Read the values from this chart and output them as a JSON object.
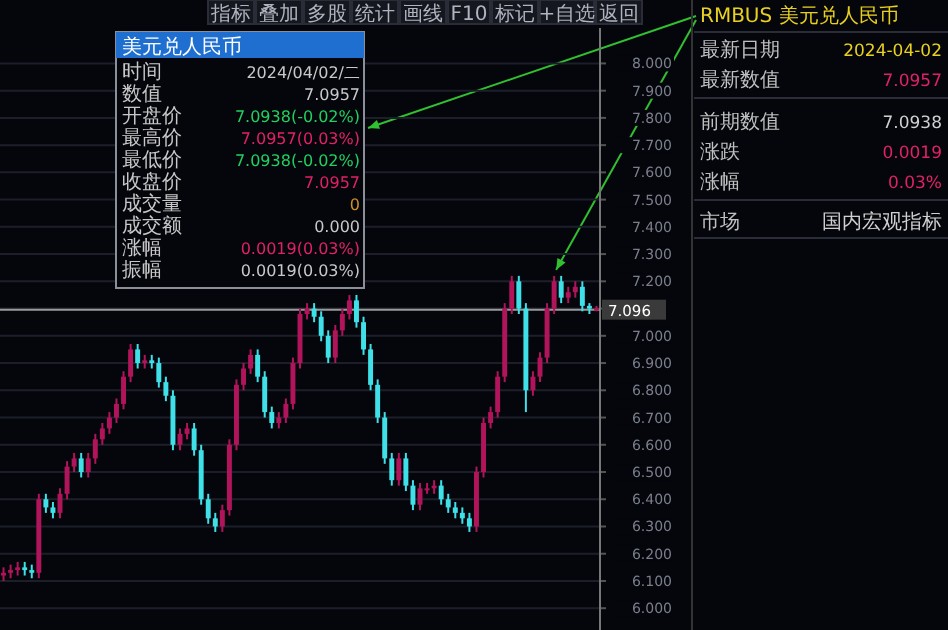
{
  "chart_data": {
    "type": "candlestick",
    "title": "RMBUS 美元兑人民币",
    "categories": [
      null,
      null,
      null,
      null,
      null,
      null,
      null,
      null,
      null,
      null,
      null,
      null,
      null,
      null,
      null,
      null,
      null,
      null,
      null,
      null,
      null,
      null,
      null,
      null,
      null,
      null,
      null,
      null,
      null,
      null,
      null,
      null,
      null,
      null,
      null,
      null,
      null,
      null,
      null,
      null,
      null,
      null,
      null,
      null,
      null,
      null,
      null,
      null,
      null,
      null,
      null,
      null,
      null,
      null,
      null,
      null,
      null,
      null,
      null,
      null,
      null,
      null,
      null,
      null,
      null,
      null,
      null,
      null,
      null,
      null,
      null,
      null,
      null,
      null,
      null,
      null,
      null,
      null,
      null,
      null,
      null,
      null,
      null,
      null,
      null
    ],
    "ohlc": [
      [
        6.12,
        6.15,
        6.1,
        6.13
      ],
      [
        6.13,
        6.16,
        6.11,
        6.14
      ],
      [
        6.14,
        6.17,
        6.12,
        6.15
      ],
      [
        6.15,
        6.17,
        6.12,
        6.14
      ],
      [
        6.14,
        6.16,
        6.11,
        6.13
      ],
      [
        6.13,
        6.42,
        6.11,
        6.4
      ],
      [
        6.4,
        6.42,
        6.35,
        6.37
      ],
      [
        6.37,
        6.39,
        6.33,
        6.35
      ],
      [
        6.35,
        6.44,
        6.33,
        6.42
      ],
      [
        6.42,
        6.54,
        6.4,
        6.52
      ],
      [
        6.52,
        6.57,
        6.5,
        6.55
      ],
      [
        6.55,
        6.57,
        6.48,
        6.5
      ],
      [
        6.5,
        6.57,
        6.48,
        6.55
      ],
      [
        6.55,
        6.64,
        6.53,
        6.62
      ],
      [
        6.62,
        6.68,
        6.6,
        6.66
      ],
      [
        6.66,
        6.72,
        6.64,
        6.7
      ],
      [
        6.7,
        6.77,
        6.68,
        6.75
      ],
      [
        6.75,
        6.87,
        6.73,
        6.85
      ],
      [
        6.85,
        6.97,
        6.83,
        6.95
      ],
      [
        6.95,
        6.97,
        6.88,
        6.9
      ],
      [
        6.9,
        6.93,
        6.88,
        6.91
      ],
      [
        6.91,
        6.93,
        6.88,
        6.9
      ],
      [
        6.9,
        6.92,
        6.81,
        6.83
      ],
      [
        6.83,
        6.85,
        6.76,
        6.78
      ],
      [
        6.78,
        6.8,
        6.58,
        6.6
      ],
      [
        6.6,
        6.66,
        6.58,
        6.64
      ],
      [
        6.64,
        6.68,
        6.62,
        6.66
      ],
      [
        6.66,
        6.68,
        6.56,
        6.58
      ],
      [
        6.58,
        6.6,
        6.38,
        6.4
      ],
      [
        6.4,
        6.42,
        6.31,
        6.33
      ],
      [
        6.33,
        6.35,
        6.28,
        6.3
      ],
      [
        6.3,
        6.38,
        6.28,
        6.36
      ],
      [
        6.36,
        6.62,
        6.34,
        6.6
      ],
      [
        6.6,
        6.84,
        6.58,
        6.82
      ],
      [
        6.82,
        6.9,
        6.8,
        6.88
      ],
      [
        6.88,
        6.95,
        6.86,
        6.93
      ],
      [
        6.93,
        6.95,
        6.83,
        6.85
      ],
      [
        6.85,
        6.87,
        6.7,
        6.72
      ],
      [
        6.72,
        6.74,
        6.66,
        6.68
      ],
      [
        6.68,
        6.72,
        6.66,
        6.7
      ],
      [
        6.7,
        6.77,
        6.68,
        6.75
      ],
      [
        6.75,
        6.92,
        6.73,
        6.9
      ],
      [
        6.9,
        7.1,
        6.88,
        7.08
      ],
      [
        7.08,
        7.12,
        7.06,
        7.1
      ],
      [
        7.1,
        7.12,
        7.05,
        7.07
      ],
      [
        7.07,
        7.09,
        6.98,
        7.0
      ],
      [
        7.0,
        7.02,
        6.9,
        6.92
      ],
      [
        6.92,
        7.04,
        6.9,
        7.02
      ],
      [
        7.02,
        7.1,
        7.0,
        7.08
      ],
      [
        7.08,
        7.15,
        7.06,
        7.13
      ],
      [
        7.13,
        7.15,
        7.03,
        7.05
      ],
      [
        7.05,
        7.07,
        6.93,
        6.95
      ],
      [
        6.95,
        6.97,
        6.8,
        6.82
      ],
      [
        6.82,
        6.84,
        6.68,
        6.7
      ],
      [
        6.7,
        6.72,
        6.53,
        6.55
      ],
      [
        6.55,
        6.57,
        6.45,
        6.47
      ],
      [
        6.47,
        6.57,
        6.45,
        6.55
      ],
      [
        6.55,
        6.57,
        6.43,
        6.45
      ],
      [
        6.45,
        6.47,
        6.36,
        6.38
      ],
      [
        6.38,
        6.46,
        6.36,
        6.44
      ],
      [
        6.44,
        6.46,
        6.42,
        6.44
      ],
      [
        6.44,
        6.47,
        6.42,
        6.45
      ],
      [
        6.45,
        6.47,
        6.38,
        6.4
      ],
      [
        6.4,
        6.42,
        6.35,
        6.37
      ],
      [
        6.37,
        6.39,
        6.33,
        6.35
      ],
      [
        6.35,
        6.37,
        6.31,
        6.33
      ],
      [
        6.33,
        6.35,
        6.28,
        6.3
      ],
      [
        6.3,
        6.52,
        6.28,
        6.5
      ],
      [
        6.5,
        6.7,
        6.48,
        6.68
      ],
      [
        6.68,
        6.74,
        6.66,
        6.72
      ],
      [
        6.72,
        6.87,
        6.7,
        6.85
      ],
      [
        6.85,
        7.12,
        6.83,
        7.1
      ],
      [
        7.1,
        7.22,
        7.08,
        7.2
      ],
      [
        7.2,
        7.22,
        7.08,
        7.1
      ],
      [
        7.1,
        7.12,
        6.72,
        6.8
      ],
      [
        6.8,
        6.87,
        6.78,
        6.85
      ],
      [
        6.85,
        6.94,
        6.83,
        6.92
      ],
      [
        6.92,
        7.12,
        6.9,
        7.1
      ],
      [
        7.1,
        7.22,
        7.08,
        7.2
      ],
      [
        7.2,
        7.22,
        7.12,
        7.14
      ],
      [
        7.14,
        7.18,
        7.12,
        7.16
      ],
      [
        7.16,
        7.2,
        7.14,
        7.18
      ],
      [
        7.18,
        7.2,
        7.09,
        7.11
      ],
      [
        7.11,
        7.12,
        7.08,
        7.1
      ],
      [
        7.1,
        7.11,
        7.09,
        7.1
      ]
    ],
    "ylim": [
      5.92,
      8.13
    ],
    "yticks": [
      {
        "value": 6.0,
        "label": "6.000"
      },
      {
        "value": 6.1,
        "label": "6.100"
      },
      {
        "value": 6.2,
        "label": "6.200"
      },
      {
        "value": 6.3,
        "label": "6.300"
      },
      {
        "value": 6.4,
        "label": "6.400"
      },
      {
        "value": 6.5,
        "label": "6.500"
      },
      {
        "value": 6.6,
        "label": "6.600"
      },
      {
        "value": 6.7,
        "label": "6.700"
      },
      {
        "value": 6.8,
        "label": "6.800"
      },
      {
        "value": 6.9,
        "label": "6.900"
      },
      {
        "value": 7.0,
        "label": "7.000"
      },
      {
        "value": 7.1,
        "label": null
      },
      {
        "value": 7.2,
        "label": "7.200"
      },
      {
        "value": 7.3,
        "label": "7.300"
      },
      {
        "value": 7.4,
        "label": "7.400"
      },
      {
        "value": 7.5,
        "label": "7.500"
      },
      {
        "value": 7.6,
        "label": "7.600"
      },
      {
        "value": 7.7,
        "label": "7.700"
      },
      {
        "value": 7.8,
        "label": "7.800"
      },
      {
        "value": 7.9,
        "label": "7.900"
      },
      {
        "value": 8.0,
        "label": "8.000"
      }
    ],
    "grid": "y",
    "tick_labels": "y",
    "ref_lines": [
      {
        "axis": "y",
        "value": 7.096,
        "label": "7.096",
        "color": "#9a9a9a"
      }
    ],
    "annotations": [
      "指标",
      "叠加",
      "多股",
      "统计",
      "画线",
      "F10",
      "标记",
      "+自选",
      "返回",
      "美元兑人民币",
      "时间",
      "2024/04/02/二",
      "数值",
      "7.0957",
      "开盘价",
      "7.0938(-0.02%)",
      "最高价",
      "7.0957(0.03%)",
      "最低价",
      "7.0938(-0.02%)",
      "收盘价",
      "7.0957",
      "成交量",
      "0",
      "成交额",
      "0.000",
      "涨幅",
      "0.0019(0.03%)",
      "振幅",
      "0.0019(0.03%)",
      "最新日期",
      "2024-04-02",
      "最新数值",
      "7.0957",
      "前期数值",
      "7.0938",
      "涨跌",
      "0.0019",
      "涨幅",
      "0.03%",
      "市场",
      "国内宏观指标"
    ]
  }
}
